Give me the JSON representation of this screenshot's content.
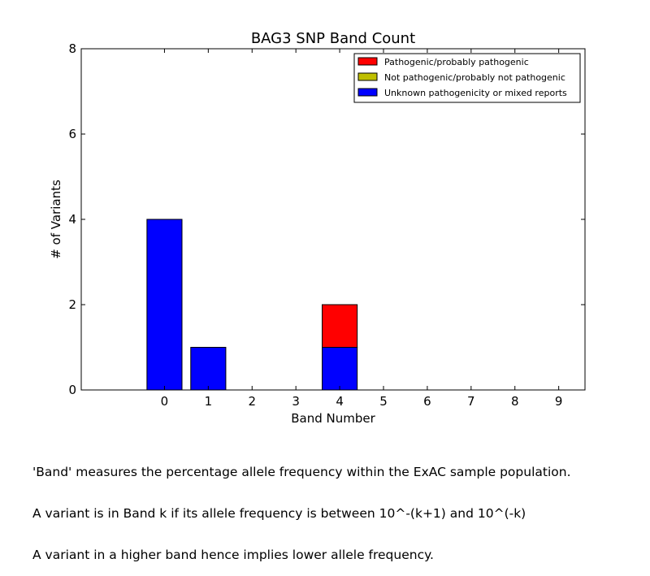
{
  "chart_data": {
    "type": "bar",
    "title": "BAG3 SNP Band Count",
    "xlabel": "Band Number",
    "ylabel": "# of Variants",
    "ylim": [
      0,
      8
    ],
    "yticks": [
      "0",
      "2",
      "4",
      "6",
      "8"
    ],
    "xlim": [
      -1.5,
      10
    ],
    "categories": [
      "0",
      "1",
      "2",
      "3",
      "4",
      "5",
      "6",
      "7",
      "8",
      "9"
    ],
    "stacked": true,
    "grid": false,
    "legend_position": "top-right",
    "series": [
      {
        "name": "Unknown pathogenicity or mixed reports",
        "color": "#0000ff",
        "values": [
          4,
          1,
          0,
          0,
          1,
          0,
          0,
          0,
          0,
          0
        ]
      },
      {
        "name": "Not pathogenic/probably not pathogenic",
        "color": "#bfbf00",
        "values": [
          0,
          0,
          0,
          0,
          0,
          0,
          0,
          0,
          0,
          0
        ]
      },
      {
        "name": "Pathogenic/probably pathogenic",
        "color": "#ff0000",
        "values": [
          0,
          0,
          0,
          0,
          1,
          0,
          0,
          0,
          0,
          0
        ]
      }
    ],
    "legend_order": [
      "Pathogenic/probably pathogenic",
      "Not pathogenic/probably not pathogenic",
      "Unknown pathogenicity or mixed reports"
    ]
  },
  "caption": {
    "lines": [
      "'Band' measures the percentage allele frequency within the ExAC sample population.",
      "A variant is in Band k if its allele frequency is between 10^-(k+1) and 10^(-k)",
      "A variant in a higher band hence implies lower allele frequency."
    ]
  }
}
